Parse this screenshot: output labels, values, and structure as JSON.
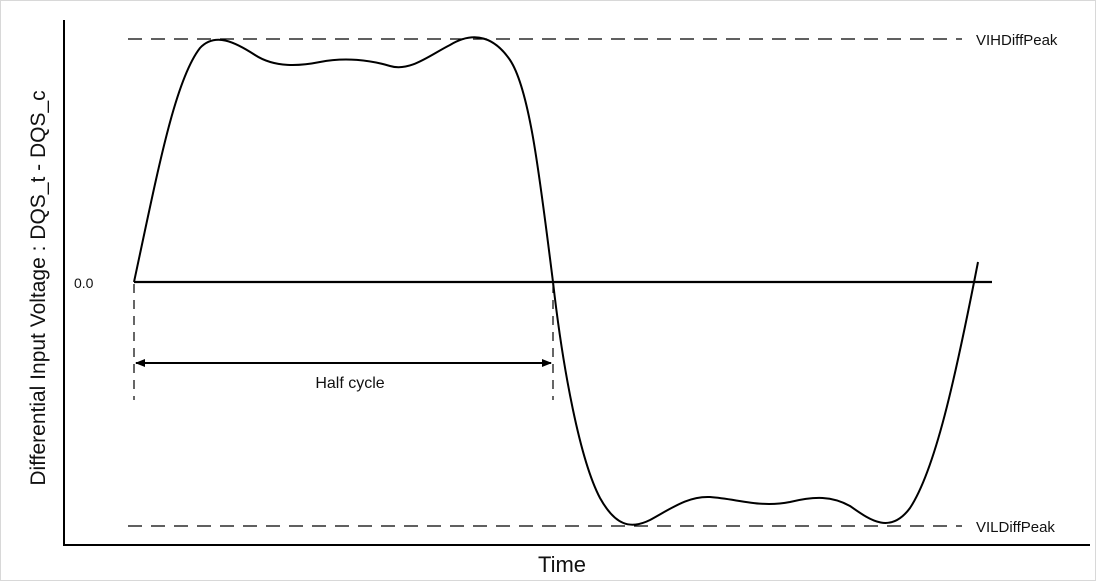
{
  "diagram": {
    "ylabel": "Differential Input Voltage : DQS_t - DQS_c",
    "xlabel": "Time",
    "zero_label": "0.0",
    "vih_label": "VIHDiffPeak",
    "vil_label": "VILDiffPeak",
    "half_cycle_label": "Half cycle"
  },
  "colors": {
    "line": "#000000",
    "frame": "#d8d8d8"
  }
}
